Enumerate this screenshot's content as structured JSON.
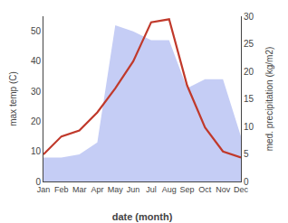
{
  "chart_data": {
    "type": "line",
    "categories": [
      "Jan",
      "Feb",
      "Mar",
      "Apr",
      "May",
      "Jun",
      "Jul",
      "Aug",
      "Sep",
      "Oct",
      "Nov",
      "Dec"
    ],
    "series": [
      {
        "type": "area",
        "color": "#c5cdf5",
        "values": [
          8,
          8,
          9,
          13,
          52,
          50,
          47,
          47,
          31,
          34,
          34,
          15
        ]
      },
      {
        "type": "line",
        "color": "#c0392b",
        "values": [
          9,
          15,
          17,
          23,
          31,
          40,
          53,
          54,
          32,
          18,
          10,
          8
        ]
      }
    ],
    "xlabel": "date (month)",
    "ylabel": "max temp (C)",
    "y2label": "med. precipitation (kg/m2)",
    "ylim": [
      0,
      55
    ],
    "yticks": [
      0,
      10,
      20,
      30,
      40,
      50
    ],
    "y2lim": [
      0,
      30
    ],
    "y2ticks": [
      0,
      5,
      10,
      15,
      20,
      25,
      30
    ],
    "grid": false
  }
}
